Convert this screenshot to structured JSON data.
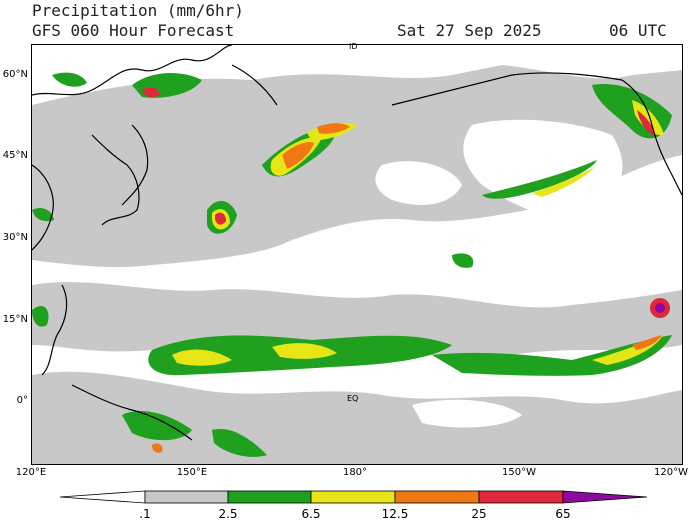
{
  "header": {
    "title": "Precipitation (mm/6hr)",
    "subtitle": "GFS 060 Hour Forecast",
    "date": "Sat 27 Sep 2025",
    "time": "06 UTC"
  },
  "axes": {
    "lat_labels": [
      "60°N",
      "45°N",
      "30°N",
      "15°N",
      "0°"
    ],
    "lon_labels": [
      "120°E",
      "150°E",
      "180°",
      "150°W",
      "120°W"
    ],
    "equator_label": "EQ",
    "top_marker": "ID"
  },
  "colorbar": {
    "labels": [
      ".1",
      "2.5",
      "6.5",
      "12.5",
      "25",
      "65"
    ],
    "colors": [
      "#ffffff",
      "#c8c8c8",
      "#1fa01f",
      "#e6e617",
      "#f07814",
      "#e0283c",
      "#8c0aa0"
    ]
  },
  "colors": {
    "light": "#c8c8c8",
    "green": "#1fa01f",
    "yellow": "#e6e617",
    "orange": "#f07814",
    "red": "#e0283c",
    "purple": "#8c0aa0"
  }
}
